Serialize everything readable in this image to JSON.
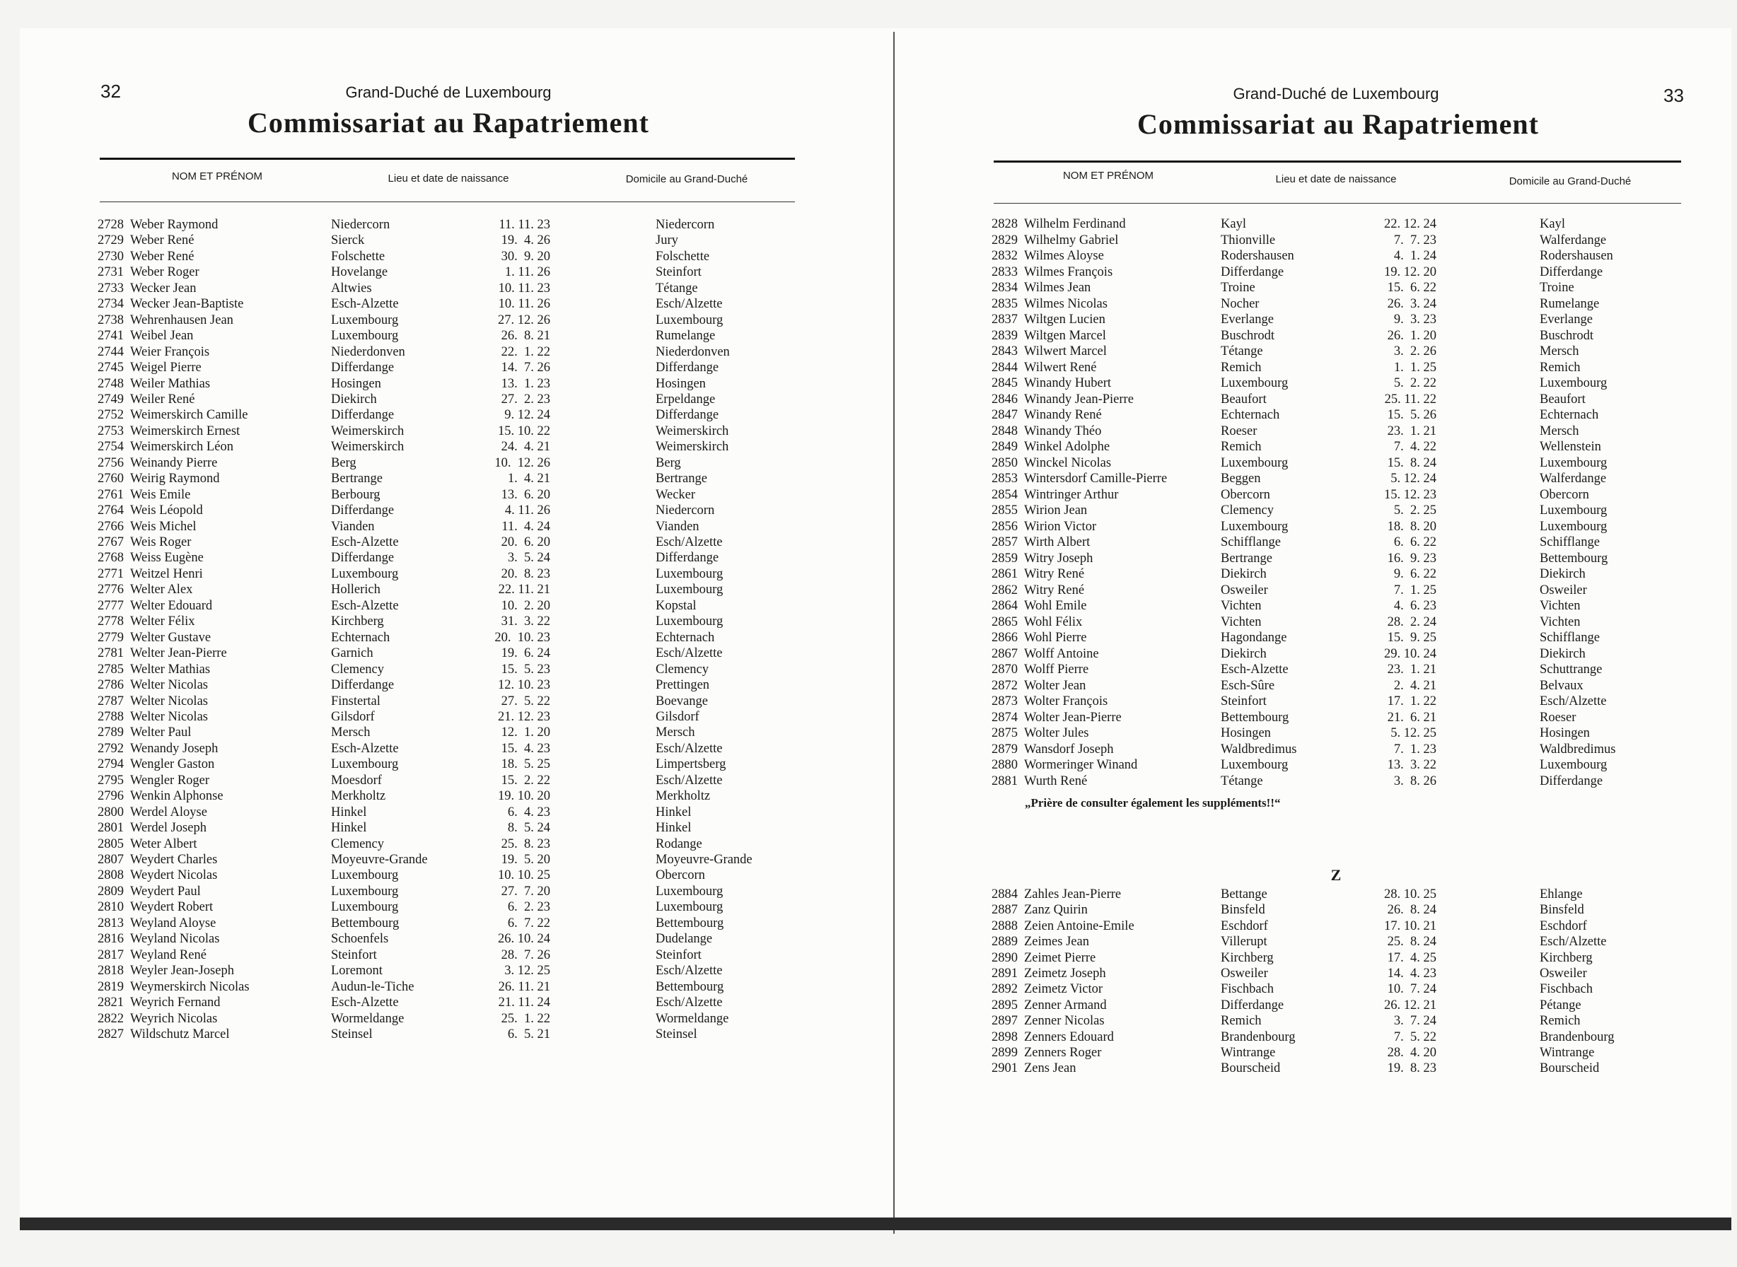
{
  "left_page": {
    "page_number": "32",
    "country": "Grand-Duché de Luxembourg",
    "heading": "Commissariat au Rapatriement",
    "columns": [
      "NOM ET PRÉNOM",
      "Lieu et date de naissance",
      "Domicile au Grand-Duché"
    ],
    "rows": [
      [
        "2728",
        "Weber Raymond",
        "Niedercorn",
        "11. 11. 23",
        "Niedercorn"
      ],
      [
        "2729",
        "Weber René",
        "Sierck",
        "19.  4. 26",
        "Jury"
      ],
      [
        "2730",
        "Weber René",
        "Folschette",
        "30.  9. 20",
        "Folschette"
      ],
      [
        "2731",
        "Weber Roger",
        "Hovelange",
        "1. 11. 26",
        "Steinfort"
      ],
      [
        "2733",
        "Wecker Jean",
        "Altwies",
        "10. 11. 23",
        "Tétange"
      ],
      [
        "2734",
        "Wecker Jean-Baptiste",
        "Esch-Alzette",
        "10. 11. 26",
        "Esch/Alzette"
      ],
      [
        "2738",
        "Wehrenhausen Jean",
        "Luxembourg",
        "27. 12. 26",
        "Luxembourg"
      ],
      [
        "2741",
        "Weibel Jean",
        "Luxembourg",
        "26.  8. 21",
        "Rumelange"
      ],
      [
        "2744",
        "Weier François",
        "Niederdonven",
        "22.  1. 22",
        "Niederdonven"
      ],
      [
        "2745",
        "Weigel Pierre",
        "Differdange",
        "14.  7. 26",
        "Differdange"
      ],
      [
        "2748",
        "Weiler Mathias",
        "Hosingen",
        "13.  1. 23",
        "Hosingen"
      ],
      [
        "2749",
        "Weiler René",
        "Diekirch",
        "27.  2. 23",
        "Erpeldange"
      ],
      [
        "2752",
        "Weimerskirch Camille",
        "Differdange",
        "9. 12. 24",
        "Differdange"
      ],
      [
        "2753",
        "Weimerskirch Ernest",
        "Weimerskirch",
        "15. 10. 22",
        "Weimerskirch"
      ],
      [
        "2754",
        "Weimerskirch Léon",
        "Weimerskirch",
        "24.  4. 21",
        "Weimerskirch"
      ],
      [
        "2756",
        "Weinandy Pierre",
        "Berg",
        "10.  12. 26",
        "Berg"
      ],
      [
        "2760",
        "Weirig Raymond",
        "Bertrange",
        "1.  4. 21",
        "Bertrange"
      ],
      [
        "2761",
        "Weis Emile",
        "Berbourg",
        "13.  6. 20",
        "Wecker"
      ],
      [
        "2764",
        "Weis Léopold",
        "Differdange",
        "4. 11. 26",
        "Niedercorn"
      ],
      [
        "2766",
        "Weis Michel",
        "Vianden",
        "11.  4. 24",
        "Vianden"
      ],
      [
        "2767",
        "Weis Roger",
        "Esch-Alzette",
        "20.  6. 20",
        "Esch/Alzette"
      ],
      [
        "2768",
        "Weiss Eugène",
        "Differdange",
        "3.  5. 24",
        "Differdange"
      ],
      [
        "2771",
        "Weitzel Henri",
        "Luxembourg",
        "20.  8. 23",
        "Luxembourg"
      ],
      [
        "2776",
        "Welter Alex",
        "Hollerich",
        "22. 11. 21",
        "Luxembourg"
      ],
      [
        "2777",
        "Welter Edouard",
        "Esch-Alzette",
        "10.  2. 20",
        "Kopstal"
      ],
      [
        "2778",
        "Welter Félix",
        "Kirchberg",
        "31.  3. 22",
        "Luxembourg"
      ],
      [
        "2779",
        "Welter Gustave",
        "Echternach",
        "20.  10. 23",
        "Echternach"
      ],
      [
        "2781",
        "Welter Jean-Pierre",
        "Garnich",
        "19.  6. 24",
        "Esch/Alzette"
      ],
      [
        "2785",
        "Welter Mathias",
        "Clemency",
        "15.  5. 23",
        "Clemency"
      ],
      [
        "2786",
        "Welter Nicolas",
        "Differdange",
        "12. 10. 23",
        "Prettingen"
      ],
      [
        "2787",
        "Welter Nicolas",
        "Finstertal",
        "27.  5. 22",
        "Boevange"
      ],
      [
        "2788",
        "Welter Nicolas",
        "Gilsdorf",
        "21. 12. 23",
        "Gilsdorf"
      ],
      [
        "2789",
        "Welter Paul",
        "Mersch",
        "12.  1. 20",
        "Mersch"
      ],
      [
        "2792",
        "Wenandy Joseph",
        "Esch-Alzette",
        "15.  4. 23",
        "Esch/Alzette"
      ],
      [
        "2794",
        "Wengler Gaston",
        "Luxembourg",
        "18.  5. 25",
        "Limpertsberg"
      ],
      [
        "2795",
        "Wengler Roger",
        "Moesdorf",
        "15.  2. 22",
        "Esch/Alzette"
      ],
      [
        "2796",
        "Wenkin Alphonse",
        "Merkholtz",
        "19. 10. 20",
        "Merkholtz"
      ],
      [
        "2800",
        "Werdel Aloyse",
        "Hinkel",
        "6.  4. 23",
        "Hinkel"
      ],
      [
        "2801",
        "Werdel Joseph",
        "Hinkel",
        "8.  5. 24",
        "Hinkel"
      ],
      [
        "2805",
        "Weter Albert",
        "Clemency",
        "25.  8. 23",
        "Rodange"
      ],
      [
        "2807",
        "Weydert Charles",
        "Moyeuvre-Grande",
        "19.  5. 20",
        "Moyeuvre-Grande"
      ],
      [
        "2808",
        "Weydert Nicolas",
        "Luxembourg",
        "10. 10. 25",
        "Obercorn"
      ],
      [
        "2809",
        "Weydert Paul",
        "Luxembourg",
        "27.  7. 20",
        "Luxembourg"
      ],
      [
        "2810",
        "Weydert Robert",
        "Luxembourg",
        "6.  2. 23",
        "Luxembourg"
      ],
      [
        "2813",
        "Weyland Aloyse",
        "Bettembourg",
        "6.  7. 22",
        "Bettembourg"
      ],
      [
        "2816",
        "Weyland Nicolas",
        "Schoenfels",
        "26. 10. 24",
        "Dudelange"
      ],
      [
        "2817",
        "Weyland René",
        "Steinfort",
        "28.  7. 26",
        "Steinfort"
      ],
      [
        "2818",
        "Weyler Jean-Joseph",
        "Loremont",
        "3. 12. 25",
        "Esch/Alzette"
      ],
      [
        "2819",
        "Weymerskirch Nicolas",
        "Audun-le-Tiche",
        "26. 11. 21",
        "Bettembourg"
      ],
      [
        "2821",
        "Weyrich Fernand",
        "Esch-Alzette",
        "21. 11. 24",
        "Esch/Alzette"
      ],
      [
        "2822",
        "Weyrich Nicolas",
        "Wormeldange",
        "25.  1. 22",
        "Wormeldange"
      ],
      [
        "2827",
        "Wildschutz Marcel",
        "Steinsel",
        "6.  5. 21",
        "Steinsel"
      ]
    ]
  },
  "right_page": {
    "page_number": "33",
    "country": "Grand-Duché de Luxembourg",
    "heading": "Commissariat au Rapatriement",
    "columns": [
      "NOM ET PRÉNOM",
      "Lieu et date de naissance",
      "Domicile au Grand-Duché"
    ],
    "rows": [
      [
        "2828",
        "Wilhelm Ferdinand",
        "Kayl",
        "22. 12. 24",
        "Kayl"
      ],
      [
        "2829",
        "Wilhelmy Gabriel",
        "Thionville",
        "7.  7. 23",
        "Walferdange"
      ],
      [
        "2832",
        "Wilmes Aloyse",
        "Rodershausen",
        "4.  1. 24",
        "Rodershausen"
      ],
      [
        "2833",
        "Wilmes François",
        "Differdange",
        "19. 12. 20",
        "Differdange"
      ],
      [
        "2834",
        "Wilmes Jean",
        "Troine",
        "15.  6. 22",
        "Troine"
      ],
      [
        "2835",
        "Wilmes Nicolas",
        "Nocher",
        "26.  3. 24",
        "Rumelange"
      ],
      [
        "2837",
        "Wiltgen Lucien",
        "Everlange",
        "9.  3. 23",
        "Everlange"
      ],
      [
        "2839",
        "Wiltgen Marcel",
        "Buschrodt",
        "26.  1. 20",
        "Buschrodt"
      ],
      [
        "2843",
        "Wilwert Marcel",
        "Tétange",
        "3.  2. 26",
        "Mersch"
      ],
      [
        "2844",
        "Wilwert René",
        "Remich",
        "1.  1. 25",
        "Remich"
      ],
      [
        "2845",
        "Winandy Hubert",
        "Luxembourg",
        "5.  2. 22",
        "Luxembourg"
      ],
      [
        "2846",
        "Winandy Jean-Pierre",
        "Beaufort",
        "25. 11. 22",
        "Beaufort"
      ],
      [
        "2847",
        "Winandy René",
        "Echternach",
        "15.  5. 26",
        "Echternach"
      ],
      [
        "2848",
        "Winandy Théo",
        "Roeser",
        "23.  1. 21",
        "Mersch"
      ],
      [
        "2849",
        "Winkel Adolphe",
        "Remich",
        "7.  4. 22",
        "Wellenstein"
      ],
      [
        "2850",
        "Winckel Nicolas",
        "Luxembourg",
        "15.  8. 24",
        "Luxembourg"
      ],
      [
        "2853",
        "Wintersdorf Camille-Pierre",
        "Beggen",
        "5. 12. 24",
        "Walferdange"
      ],
      [
        "2854",
        "Wintringer Arthur",
        "Obercorn",
        "15. 12. 23",
        "Obercorn"
      ],
      [
        "2855",
        "Wirion Jean",
        "Clemency",
        "5.  2. 25",
        "Luxembourg"
      ],
      [
        "2856",
        "Wirion Victor",
        "Luxembourg",
        "18.  8. 20",
        "Luxembourg"
      ],
      [
        "2857",
        "Wirth Albert",
        "Schifflange",
        "6.  6. 22",
        "Schifflange"
      ],
      [
        "2859",
        "Witry Joseph",
        "Bertrange",
        "16.  9. 23",
        "Bettembourg"
      ],
      [
        "2861",
        "Witry René",
        "Diekirch",
        "9.  6. 22",
        "Diekirch"
      ],
      [
        "2862",
        "Witry René",
        "Osweiler",
        "7.  1. 25",
        "Osweiler"
      ],
      [
        "2864",
        "Wohl Emile",
        "Vichten",
        "4.  6. 23",
        "Vichten"
      ],
      [
        "2865",
        "Wohl Félix",
        "Vichten",
        "28.  2. 24",
        "Vichten"
      ],
      [
        "2866",
        "Wohl Pierre",
        "Hagondange",
        "15.  9. 25",
        "Schifflange"
      ],
      [
        "2867",
        "Wolff Antoine",
        "Diekirch",
        "29. 10. 24",
        "Diekirch"
      ],
      [
        "2870",
        "Wolff Pierre",
        "Esch-Alzette",
        "23.  1. 21",
        "Schuttrange"
      ],
      [
        "2872",
        "Wolter Jean",
        "Esch-Sûre",
        "2.  4. 21",
        "Belvaux"
      ],
      [
        "2873",
        "Wolter François",
        "Steinfort",
        "17.  1. 22",
        "Esch/Alzette"
      ],
      [
        "2874",
        "Wolter Jean-Pierre",
        "Bettembourg",
        "21.  6. 21",
        "Roeser"
      ],
      [
        "2875",
        "Wolter Jules",
        "Hosingen",
        "5. 12. 25",
        "Hosingen"
      ],
      [
        "2879",
        "Wansdorf Joseph",
        "Waldbredimus",
        "7.  1. 23",
        "Waldbredimus"
      ],
      [
        "2880",
        "Wormeringer Winand",
        "Luxembourg",
        "13.  3. 22",
        "Luxembourg"
      ],
      [
        "2881",
        "Wurth René",
        "Tétange",
        "3.  8. 26",
        "Differdange"
      ]
    ],
    "note": "„Prière de consulter également les suppléments!!“",
    "section_letter": "Z",
    "z_rows": [
      [
        "2884",
        "Zahles Jean-Pierre",
        "Bettange",
        "28. 10. 25",
        "Ehlange"
      ],
      [
        "2887",
        "Zanz Quirin",
        "Binsfeld",
        "26.  8. 24",
        "Binsfeld"
      ],
      [
        "2888",
        "Zeien Antoine-Emile",
        "Eschdorf",
        "17. 10. 21",
        "Eschdorf"
      ],
      [
        "2889",
        "Zeimes Jean",
        "Villerupt",
        "25.  8. 24",
        "Esch/Alzette"
      ],
      [
        "2890",
        "Zeimet Pierre",
        "Kirchberg",
        "17.  4. 25",
        "Kirchberg"
      ],
      [
        "2891",
        "Zeimetz Joseph",
        "Osweiler",
        "14.  4. 23",
        "Osweiler"
      ],
      [
        "2892",
        "Zeimetz Victor",
        "Fischbach",
        "10.  7. 24",
        "Fischbach"
      ],
      [
        "2895",
        "Zenner Armand",
        "Differdange",
        "26. 12. 21",
        "Pétange"
      ],
      [
        "2897",
        "Zenner Nicolas",
        "Remich",
        "3.  7. 24",
        "Remich"
      ],
      [
        "2898",
        "Zenners Edouard",
        "Brandenbourg",
        "7.  5. 22",
        "Brandenbourg"
      ],
      [
        "2899",
        "Zenners Roger",
        "Wintrange",
        "28.  4. 20",
        "Wintrange"
      ],
      [
        "2901",
        "Zens Jean",
        "Bourscheid",
        "19.  8. 23",
        "Bourscheid"
      ]
    ]
  }
}
